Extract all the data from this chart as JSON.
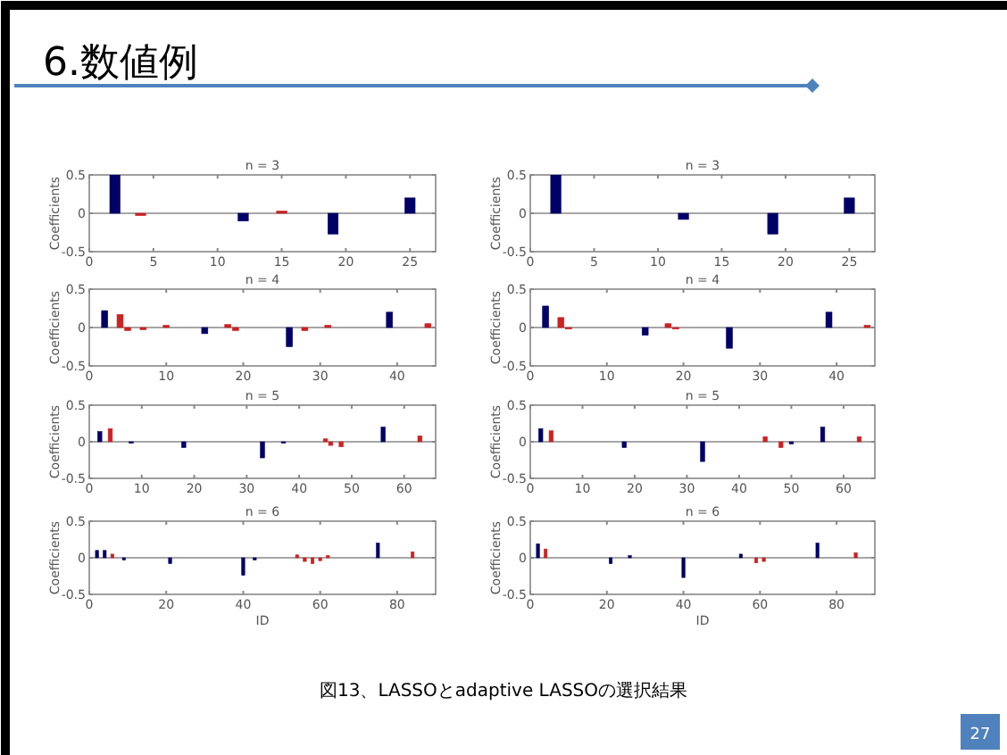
{
  "chart_data": [
    {
      "type": "other",
      "title": "6.数値例",
      "annotations": [
        "図13、LASSOとadaptive LASSOの選択結果",
        "27"
      ]
    },
    {
      "type": "bar",
      "title": "n = 3",
      "ylabel": "Coefficients",
      "xlim": [
        0,
        27
      ],
      "xticks": [
        0,
        5,
        10,
        15,
        20,
        25
      ],
      "ylim": [
        -0.5,
        0.5
      ],
      "yticks": [
        -0.5,
        0,
        0.5
      ],
      "series": [
        {
          "color": "#000066",
          "x": [
            2,
            12,
            19,
            25
          ],
          "values": [
            0.5,
            -0.1,
            -0.27,
            0.2
          ]
        },
        {
          "color": "#cc2222",
          "x": [
            4,
            15
          ],
          "values": [
            -0.03,
            0.03
          ]
        }
      ]
    },
    {
      "type": "bar",
      "title": "n = 3",
      "ylabel": "Coefficients",
      "xlim": [
        0,
        27
      ],
      "xticks": [
        0,
        5,
        10,
        15,
        20,
        25
      ],
      "ylim": [
        -0.5,
        0.5
      ],
      "yticks": [
        -0.5,
        0,
        0.5
      ],
      "series": [
        {
          "color": "#000066",
          "x": [
            2,
            12,
            19,
            25
          ],
          "values": [
            0.5,
            -0.08,
            -0.27,
            0.2
          ]
        }
      ]
    },
    {
      "type": "bar",
      "title": "n = 4",
      "ylabel": "Coefficients",
      "xlim": [
        0,
        45
      ],
      "xticks": [
        0,
        10,
        20,
        30,
        40
      ],
      "ylim": [
        -0.5,
        0.5
      ],
      "yticks": [
        -0.5,
        0,
        0.5
      ],
      "series": [
        {
          "color": "#000066",
          "x": [
            2,
            15,
            26,
            39
          ],
          "values": [
            0.22,
            -0.08,
            -0.25,
            0.2
          ]
        },
        {
          "color": "#cc2222",
          "x": [
            4,
            5,
            7,
            10,
            18,
            19,
            28,
            31,
            44
          ],
          "values": [
            0.17,
            -0.04,
            -0.03,
            0.03,
            0.04,
            -0.04,
            -0.04,
            0.03,
            0.05
          ]
        }
      ]
    },
    {
      "type": "bar",
      "title": "n = 4",
      "ylabel": "Coefficients",
      "xlim": [
        0,
        45
      ],
      "xticks": [
        0,
        10,
        20,
        30,
        40
      ],
      "ylim": [
        -0.5,
        0.5
      ],
      "yticks": [
        -0.5,
        0,
        0.5
      ],
      "series": [
        {
          "color": "#000066",
          "x": [
            2,
            15,
            26,
            39
          ],
          "values": [
            0.28,
            -0.1,
            -0.27,
            0.2
          ]
        },
        {
          "color": "#cc2222",
          "x": [
            4,
            5,
            18,
            19,
            44
          ],
          "values": [
            0.13,
            -0.02,
            0.05,
            -0.02,
            0.03
          ]
        }
      ]
    },
    {
      "type": "bar",
      "title": "n = 5",
      "ylabel": "Coefficients",
      "xlim": [
        0,
        66
      ],
      "xticks": [
        0,
        10,
        20,
        30,
        40,
        50,
        60
      ],
      "ylim": [
        -0.5,
        0.5
      ],
      "yticks": [
        -0.5,
        0,
        0.5
      ],
      "series": [
        {
          "color": "#000066",
          "x": [
            2,
            8,
            18,
            33,
            37,
            56
          ],
          "values": [
            0.14,
            -0.02,
            -0.08,
            -0.22,
            -0.02,
            0.2
          ]
        },
        {
          "color": "#cc2222",
          "x": [
            4,
            45,
            46,
            48,
            63
          ],
          "values": [
            0.18,
            0.04,
            -0.05,
            -0.07,
            0.08
          ]
        }
      ]
    },
    {
      "type": "bar",
      "title": "n = 5",
      "ylabel": "Coefficients",
      "xlim": [
        0,
        66
      ],
      "xticks": [
        0,
        10,
        20,
        30,
        40,
        50,
        60
      ],
      "ylim": [
        -0.5,
        0.5
      ],
      "yticks": [
        -0.5,
        0,
        0.5
      ],
      "series": [
        {
          "color": "#000066",
          "x": [
            2,
            18,
            33,
            50,
            56
          ],
          "values": [
            0.18,
            -0.08,
            -0.27,
            -0.03,
            0.2
          ]
        },
        {
          "color": "#cc2222",
          "x": [
            4,
            45,
            48,
            63
          ],
          "values": [
            0.15,
            0.07,
            -0.08,
            0.07
          ]
        }
      ]
    },
    {
      "type": "bar",
      "title": "n = 6",
      "ylabel": "Coefficients",
      "xlabel": "ID",
      "xlim": [
        0,
        90
      ],
      "xticks": [
        0,
        20,
        40,
        60,
        80
      ],
      "ylim": [
        -0.5,
        0.5
      ],
      "yticks": [
        -0.5,
        0,
        0.5
      ],
      "series": [
        {
          "color": "#000066",
          "x": [
            2,
            4,
            9,
            21,
            40,
            43,
            75
          ],
          "values": [
            0.1,
            0.1,
            -0.03,
            -0.08,
            -0.24,
            -0.03,
            0.2
          ]
        },
        {
          "color": "#cc2222",
          "x": [
            6,
            54,
            56,
            58,
            60,
            62,
            84
          ],
          "values": [
            0.05,
            0.04,
            -0.05,
            -0.08,
            -0.04,
            0.03,
            0.08
          ]
        }
      ]
    },
    {
      "type": "bar",
      "title": "n = 6",
      "ylabel": "Coefficients",
      "xlabel": "ID",
      "xlim": [
        0,
        90
      ],
      "xticks": [
        0,
        20,
        40,
        60,
        80
      ],
      "ylim": [
        -0.5,
        0.5
      ],
      "yticks": [
        -0.5,
        0,
        0.5
      ],
      "series": [
        {
          "color": "#000066",
          "x": [
            2,
            21,
            26,
            40,
            55,
            75
          ],
          "values": [
            0.19,
            -0.08,
            0.03,
            -0.27,
            0.05,
            0.2
          ]
        },
        {
          "color": "#cc2222",
          "x": [
            4,
            59,
            61,
            85
          ],
          "values": [
            0.12,
            -0.07,
            -0.05,
            0.07
          ]
        }
      ]
    }
  ]
}
